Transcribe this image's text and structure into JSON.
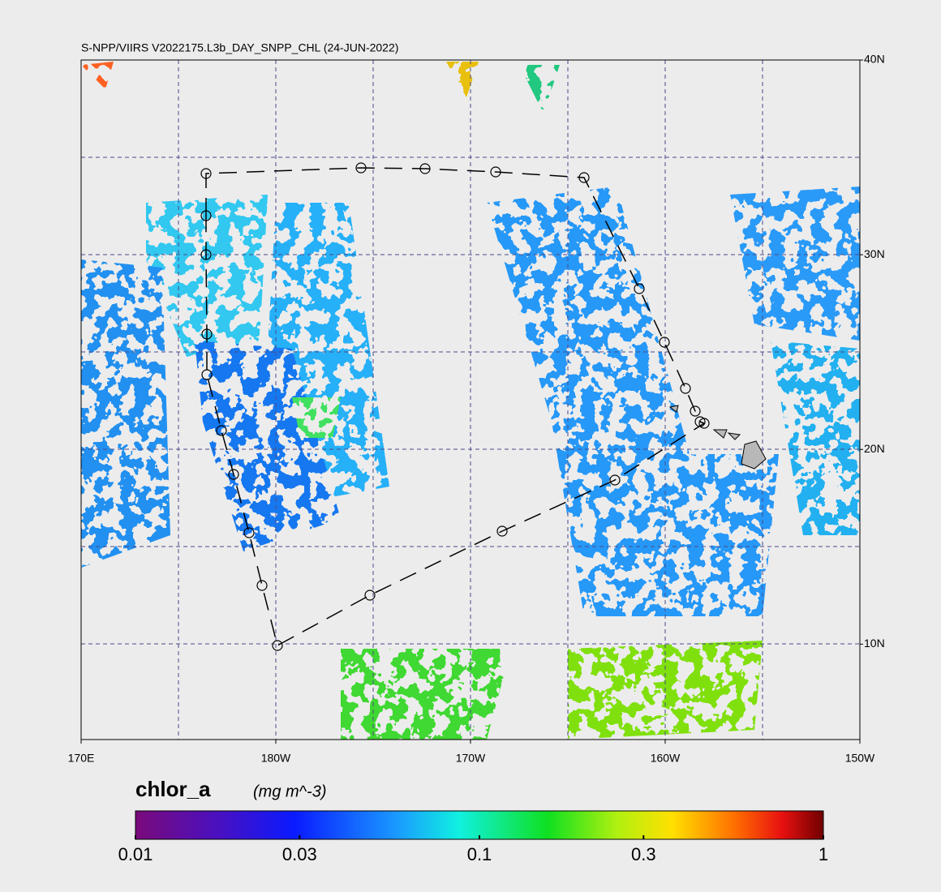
{
  "title": "S-NPP/VIIRS V2022175.L3b_DAY_SNPP_CHL (24-JUN-2022)",
  "map": {
    "lon_range": [
      170,
      210
    ],
    "lat_range": [
      5.1,
      40
    ],
    "lon_ticks": [
      {
        "value": 170,
        "label": "170E"
      },
      {
        "value": 180,
        "label": "180W"
      },
      {
        "value": 190,
        "label": "170W"
      },
      {
        "value": 200,
        "label": "160W"
      },
      {
        "value": 210,
        "label": "150W"
      }
    ],
    "lat_ticks": [
      {
        "value": 40,
        "label": "40N"
      },
      {
        "value": 30,
        "label": "30N"
      },
      {
        "value": 20,
        "label": "20N"
      },
      {
        "value": 10,
        "label": "10N"
      }
    ]
  },
  "colorbar": {
    "label": "chlor_a",
    "units": "(mg m^-3)",
    "log_scale": true,
    "range": [
      0.01,
      1
    ],
    "ticks": [
      0.01,
      0.03,
      0.1,
      0.3,
      1
    ]
  }
}
